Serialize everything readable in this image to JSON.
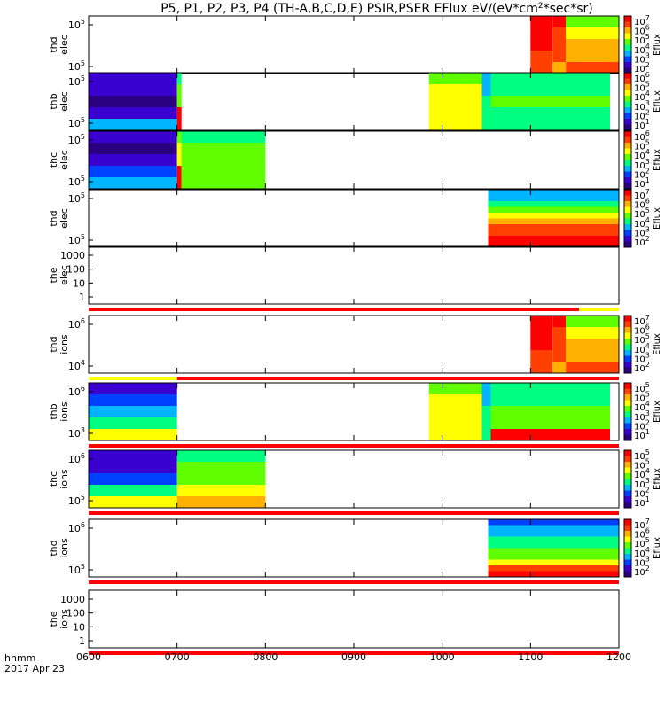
{
  "title": "P5, P1, P2, P3, P4 (TH-A,B,C,D,E) PSIR,PSER EFlux eV/(eV*cm^2*sec*sr)",
  "title_parts": {
    "prefix": "P5, P1, P2, P3, P4 (TH-A,B,C,D,E) PSIR,PSER EFlux eV/(eV*cm",
    "sup": "2",
    "suffix": "*sec*sr)"
  },
  "bottom_labels": {
    "time_fmt": "hhmm",
    "date": "2017 Apr 23"
  },
  "colors": {
    "bar_red": "#ff0000",
    "bar_yellow": "#ffff00",
    "colormap": [
      "#2a0080",
      "#3a00d0",
      "#0040ff",
      "#00b4ff",
      "#00ff80",
      "#60ff00",
      "#ffff00",
      "#ffb000",
      "#ff4000",
      "#ff0000"
    ]
  },
  "chart_data": {
    "type": "heatmap",
    "x_range": [
      "0600",
      "1200"
    ],
    "x_ticks": [
      "0600",
      "0700",
      "0800",
      "0900",
      "1000",
      "1100",
      "1200"
    ],
    "panels": [
      {
        "id": "tha-elec",
        "ylabel1": "thd",
        "ylabel2": "elec",
        "yticks": [
          "10^5",
          "10^5"
        ],
        "colorbar": true,
        "cblabel": "Eflux",
        "cbticks": [
          "10^7",
          "10^6",
          "10^5",
          "10^4",
          "10^3",
          "10^2"
        ],
        "blocks": [
          {
            "t0": "1100",
            "t1": "1125",
            "levels": [
              9,
              9,
              9,
              8,
              8
            ]
          },
          {
            "t0": "1125",
            "t1": "1140",
            "levels": [
              9,
              8,
              8,
              8,
              7
            ]
          },
          {
            "t0": "1140",
            "t1": "1200",
            "levels": [
              5,
              6,
              7,
              7,
              8
            ]
          }
        ]
      },
      {
        "id": "thb-elec",
        "ylabel1": "thb",
        "ylabel2": "elec",
        "yticks": [
          "10^5",
          "10^5"
        ],
        "colorbar": true,
        "cblabel": "Eflux",
        "cbticks": [
          "10^6",
          "10^5",
          "10^4",
          "10^3",
          "10^2",
          "10^1"
        ],
        "blocks": [
          {
            "t0": "0600",
            "t1": "0700",
            "levels": [
              1,
              1,
              0,
              1,
              3
            ]
          },
          {
            "t0": "0700",
            "t1": "0705",
            "levels": [
              4,
              5,
              5,
              9,
              9
            ]
          },
          {
            "t0": "0985",
            "t1": "1045",
            "levels": [
              5,
              6,
              6,
              6,
              6
            ]
          },
          {
            "t0": "1045",
            "t1": "1055",
            "levels": [
              3,
              3,
              4,
              4,
              4
            ]
          },
          {
            "t0": "1055",
            "t1": "1190",
            "levels": [
              4,
              4,
              5,
              4,
              4
            ]
          }
        ]
      },
      {
        "id": "thc-elec",
        "ylabel1": "thc",
        "ylabel2": "elec",
        "yticks": [
          "10^5",
          "10^5"
        ],
        "colorbar": true,
        "cblabel": "Eflux",
        "cbticks": [
          "10^6",
          "10^5",
          "10^4",
          "10^3",
          "10^2",
          "10^1"
        ],
        "blocks": [
          {
            "t0": "0600",
            "t1": "0700",
            "levels": [
              1,
              0,
              1,
              2,
              3
            ]
          },
          {
            "t0": "0700",
            "t1": "0705",
            "levels": [
              5,
              6,
              6,
              9,
              9
            ]
          },
          {
            "t0": "0705",
            "t1": "0800",
            "levels": [
              4,
              5,
              5,
              5,
              5
            ]
          }
        ]
      },
      {
        "id": "thd-elec",
        "ylabel1": "thd",
        "ylabel2": "elec",
        "yticks": [
          "10^5",
          "10^5"
        ],
        "colorbar": true,
        "cblabel": "Eflux",
        "cbticks": [
          "10^7",
          "10^6",
          "10^5",
          "10^4",
          "10^3",
          "10^2"
        ],
        "blocks": [
          {
            "t0": "1052",
            "t1": "1200",
            "levels": [
              3,
              3,
              4,
              5,
              6,
              7,
              8,
              8,
              9,
              9
            ]
          }
        ]
      },
      {
        "id": "the-elec",
        "ylabel1": "the",
        "ylabel2": "elec",
        "yticks": [
          "1000",
          "100",
          "10",
          "1"
        ],
        "colorbar": false,
        "bar": {
          "color": "red",
          "t0": "0600",
          "t1": "1155"
        }
      },
      {
        "id": "tha-ions",
        "ylabel1": "thd",
        "ylabel2": "ions",
        "yticks": [
          "10^6",
          "10^4"
        ],
        "colorbar": true,
        "cblabel": "Eflux",
        "cbticks": [
          "10^7",
          "10^6",
          "10^5",
          "10^4",
          "10^3",
          "10^2"
        ],
        "blocks": [
          {
            "t0": "1100",
            "t1": "1125",
            "levels": [
              9,
              9,
              9,
              8,
              8
            ]
          },
          {
            "t0": "1125",
            "t1": "1140",
            "levels": [
              9,
              8,
              8,
              8,
              7
            ]
          },
          {
            "t0": "1140",
            "t1": "1200",
            "levels": [
              5,
              6,
              7,
              7,
              8
            ]
          }
        ],
        "bar": {
          "color": "yellow-red",
          "t0": "0600",
          "t1": "1200"
        }
      },
      {
        "id": "thb-ions",
        "ylabel1": "thb",
        "ylabel2": "ions",
        "yticks": [
          "10^6",
          "10^3"
        ],
        "colorbar": true,
        "cblabel": "Eflux",
        "cbticks": [
          "10^5",
          "10^5",
          "10^4",
          "10^3",
          "10^2",
          "10^1"
        ],
        "blocks": [
          {
            "t0": "0600",
            "t1": "0700",
            "levels": [
              1,
              2,
              3,
              4,
              6
            ]
          },
          {
            "t0": "0985",
            "t1": "1045",
            "levels": [
              5,
              6,
              6,
              6,
              6
            ]
          },
          {
            "t0": "1045",
            "t1": "1055",
            "levels": [
              3,
              3,
              4,
              4,
              4
            ]
          },
          {
            "t0": "1055",
            "t1": "1190",
            "levels": [
              4,
              4,
              5,
              5,
              9
            ]
          }
        ],
        "bar": {
          "color": "red",
          "t0": "0600",
          "t1": "1200"
        }
      },
      {
        "id": "thc-ions",
        "ylabel1": "thc",
        "ylabel2": "ions",
        "yticks": [
          "10^6",
          "10^5"
        ],
        "colorbar": true,
        "cblabel": "Eflux",
        "cbticks": [
          "10^5",
          "10^5",
          "10^4",
          "10^3",
          "10^2",
          "10^1"
        ],
        "blocks": [
          {
            "t0": "0600",
            "t1": "0700",
            "levels": [
              1,
              1,
              2,
              4,
              6
            ]
          },
          {
            "t0": "0700",
            "t1": "0800",
            "levels": [
              4,
              5,
              5,
              6,
              7
            ]
          }
        ],
        "bar": {
          "color": "red",
          "t0": "0600",
          "t1": "1200"
        }
      },
      {
        "id": "thd-ions",
        "ylabel1": "thd",
        "ylabel2": "ions",
        "yticks": [
          "10^6",
          "10^5"
        ],
        "colorbar": true,
        "cblabel": "Eflux",
        "cbticks": [
          "10^7",
          "10^6",
          "10^5",
          "10^4",
          "10^3",
          "10^2"
        ],
        "blocks": [
          {
            "t0": "1052",
            "t1": "1200",
            "levels": [
              2,
              3,
              3,
              4,
              4,
              5,
              5,
              6,
              8,
              9
            ]
          }
        ],
        "bar": {
          "color": "red",
          "t0": "0600",
          "t1": "1200"
        }
      },
      {
        "id": "the-ions",
        "ylabel1": "the",
        "ylabel2": "ions",
        "yticks": [
          "1000",
          "100",
          "10",
          "1"
        ],
        "colorbar": false,
        "bar": {
          "color": "red",
          "t0": "0600",
          "t1": "1200"
        }
      }
    ]
  }
}
